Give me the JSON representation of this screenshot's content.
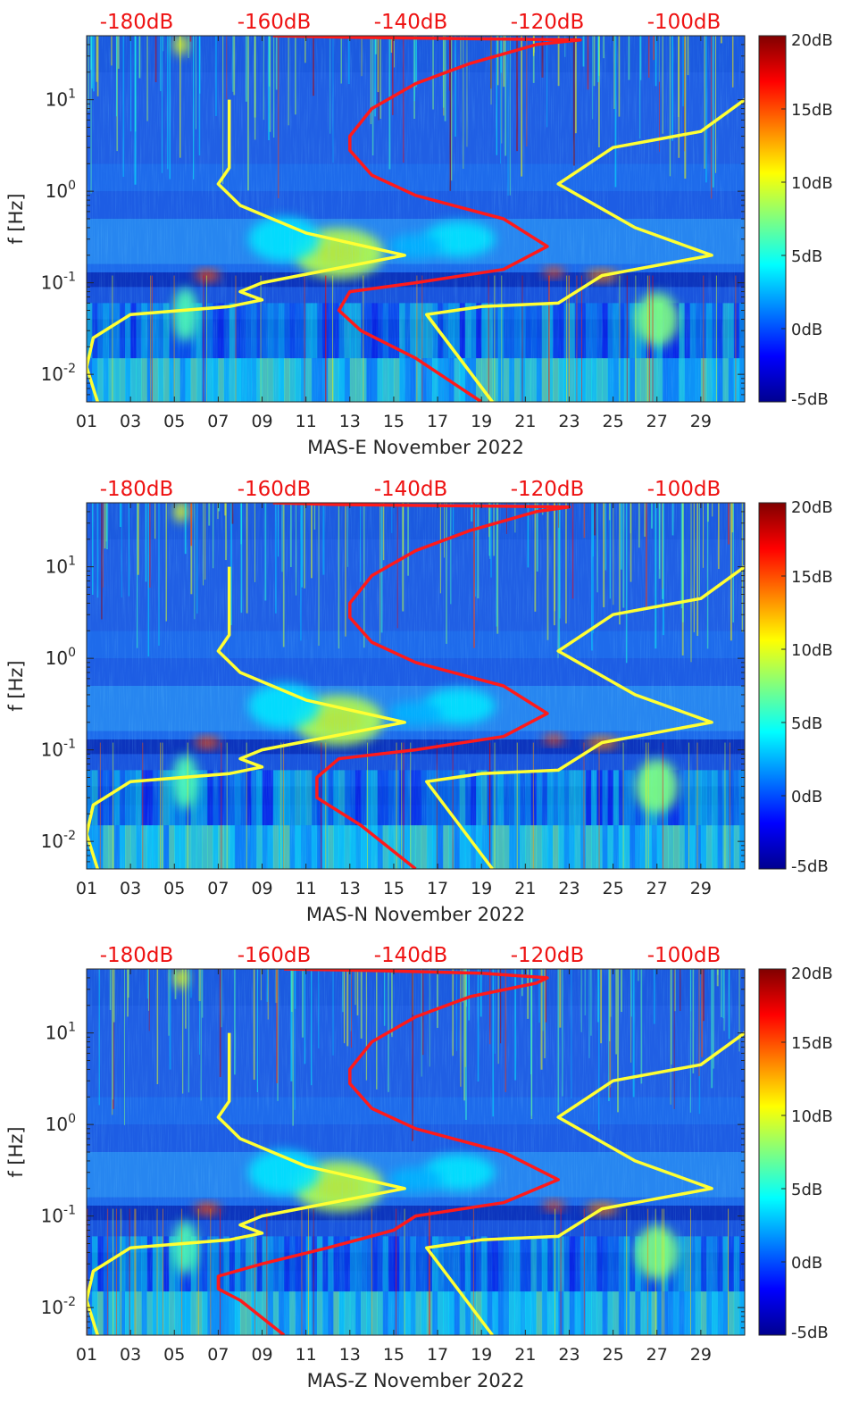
{
  "chart_data": [
    {
      "type": "heatmap",
      "xlabel": "MAS-E November 2022",
      "ylabel": "f [Hz]",
      "x_tick_labels": [
        "01",
        "03",
        "05",
        "07",
        "09",
        "11",
        "13",
        "15",
        "17",
        "19",
        "21",
        "23",
        "25",
        "27",
        "29"
      ],
      "y_tick_labels": [
        "10^-2",
        "10^-1",
        "10^0",
        "10^1"
      ],
      "ylim_hz": [
        0.005,
        50
      ],
      "yscale": "log",
      "top_axis_labels": [
        "-180dB",
        "-160dB",
        "-140dB",
        "-120dB",
        "-100dB"
      ],
      "colorbar": {
        "ticks": [
          "-5dB",
          "0dB",
          "5dB",
          "10dB",
          "15dB",
          "20dB"
        ],
        "range": [
          -5,
          20
        ],
        "colormap": "jet"
      },
      "series": [
        {
          "color": "#ffff33",
          "values_day_vs_hz": [
            [
              1.5,
              0.005
            ],
            [
              1.0,
              0.012
            ],
            [
              1.3,
              0.025
            ],
            [
              3,
              0.045
            ],
            [
              7.5,
              0.055
            ],
            [
              9.0,
              0.065
            ],
            [
              8.0,
              0.08
            ],
            [
              9.0,
              0.1
            ],
            [
              15.5,
              0.2
            ],
            [
              11,
              0.35
            ],
            [
              8,
              0.7
            ],
            [
              7,
              1.2
            ],
            [
              7.5,
              1.8
            ],
            [
              7.5,
              10
            ]
          ]
        },
        {
          "color": "#ffff33",
          "values_day_vs_hz": [
            [
              19.5,
              0.005
            ],
            [
              16.5,
              0.045
            ],
            [
              19,
              0.055
            ],
            [
              22.5,
              0.06
            ],
            [
              24.5,
              0.12
            ],
            [
              29.5,
              0.2
            ],
            [
              26,
              0.4
            ],
            [
              22.5,
              1.2
            ],
            [
              25,
              3
            ],
            [
              29,
              4.5
            ],
            [
              31,
              10
            ]
          ]
        },
        {
          "color": "#ff1a1a",
          "values_day_vs_hz": [
            [
              19,
              0.005
            ],
            [
              16,
              0.015
            ],
            [
              13.5,
              0.03
            ],
            [
              12.5,
              0.05
            ],
            [
              13,
              0.08
            ],
            [
              16,
              0.1
            ],
            [
              20,
              0.14
            ],
            [
              22,
              0.25
            ],
            [
              20,
              0.5
            ],
            [
              16,
              0.9
            ],
            [
              14,
              1.5
            ],
            [
              13,
              2.8
            ],
            [
              13,
              4
            ],
            [
              14,
              8
            ],
            [
              16,
              15
            ],
            [
              18.5,
              25
            ],
            [
              21.5,
              40
            ],
            [
              23.5,
              45
            ],
            [
              13,
              48
            ],
            [
              9.5,
              50
            ]
          ]
        },
        {
          "color": "#ffff33",
          "values_day_vs_hz": [
            [
              19.5,
              0.005
            ],
            [
              16.5,
              0.045
            ]
          ]
        }
      ]
    },
    {
      "type": "heatmap",
      "xlabel": "MAS-N November 2022",
      "ylabel": "f [Hz]",
      "x_tick_labels": [
        "01",
        "03",
        "05",
        "07",
        "09",
        "11",
        "13",
        "15",
        "17",
        "19",
        "21",
        "23",
        "25",
        "27",
        "29"
      ],
      "y_tick_labels": [
        "10^-2",
        "10^-1",
        "10^0",
        "10^1"
      ],
      "ylim_hz": [
        0.005,
        50
      ],
      "yscale": "log",
      "top_axis_labels": [
        "-180dB",
        "-160dB",
        "-140dB",
        "-120dB",
        "-100dB"
      ],
      "colorbar": {
        "ticks": [
          "-5dB",
          "0dB",
          "5dB",
          "10dB",
          "15dB",
          "20dB"
        ],
        "range": [
          -5,
          20
        ],
        "colormap": "jet"
      },
      "series": [
        {
          "color": "#ffff33",
          "values_day_vs_hz": [
            [
              1.5,
              0.005
            ],
            [
              1.0,
              0.012
            ],
            [
              1.3,
              0.025
            ],
            [
              3,
              0.045
            ],
            [
              7.5,
              0.055
            ],
            [
              9.0,
              0.065
            ],
            [
              8.0,
              0.08
            ],
            [
              9.0,
              0.1
            ],
            [
              15.5,
              0.2
            ],
            [
              11,
              0.35
            ],
            [
              8,
              0.7
            ],
            [
              7,
              1.2
            ],
            [
              7.5,
              1.8
            ],
            [
              7.5,
              10
            ]
          ]
        },
        {
          "color": "#ffff33",
          "values_day_vs_hz": [
            [
              19.5,
              0.005
            ],
            [
              16.5,
              0.045
            ],
            [
              19,
              0.055
            ],
            [
              22.5,
              0.06
            ],
            [
              24.5,
              0.12
            ],
            [
              29.5,
              0.2
            ],
            [
              26,
              0.4
            ],
            [
              22.5,
              1.2
            ],
            [
              25,
              3
            ],
            [
              29,
              4.5
            ],
            [
              31,
              10
            ]
          ]
        },
        {
          "color": "#ff1a1a",
          "values_day_vs_hz": [
            [
              16,
              0.005
            ],
            [
              13.5,
              0.015
            ],
            [
              11.5,
              0.03
            ],
            [
              11.5,
              0.05
            ],
            [
              12.5,
              0.08
            ],
            [
              16,
              0.1
            ],
            [
              20,
              0.14
            ],
            [
              22,
              0.25
            ],
            [
              20,
              0.5
            ],
            [
              16,
              0.9
            ],
            [
              14,
              1.5
            ],
            [
              13,
              2.8
            ],
            [
              13,
              4
            ],
            [
              14,
              8
            ],
            [
              16,
              15
            ],
            [
              18.5,
              25
            ],
            [
              21.5,
              40
            ],
            [
              23,
              45
            ],
            [
              12,
              48
            ],
            [
              9.5,
              50
            ]
          ]
        }
      ]
    },
    {
      "type": "heatmap",
      "xlabel": "MAS-Z November 2022",
      "ylabel": "f [Hz]",
      "x_tick_labels": [
        "01",
        "03",
        "05",
        "07",
        "09",
        "11",
        "13",
        "15",
        "17",
        "19",
        "21",
        "23",
        "25",
        "27",
        "29"
      ],
      "y_tick_labels": [
        "10^-2",
        "10^-1",
        "10^0",
        "10^1"
      ],
      "ylim_hz": [
        0.005,
        50
      ],
      "yscale": "log",
      "top_axis_labels": [
        "-180dB",
        "-160dB",
        "-140dB",
        "-120dB",
        "-100dB"
      ],
      "colorbar": {
        "ticks": [
          "-5dB",
          "0dB",
          "5dB",
          "10dB",
          "15dB",
          "20dB"
        ],
        "range": [
          -5,
          20
        ],
        "colormap": "jet"
      },
      "series": [
        {
          "color": "#ffff33",
          "values_day_vs_hz": [
            [
              1.5,
              0.005
            ],
            [
              1.0,
              0.012
            ],
            [
              1.3,
              0.025
            ],
            [
              3,
              0.045
            ],
            [
              7.5,
              0.055
            ],
            [
              9.0,
              0.065
            ],
            [
              8.0,
              0.08
            ],
            [
              9.0,
              0.1
            ],
            [
              15.5,
              0.2
            ],
            [
              11,
              0.35
            ],
            [
              8,
              0.7
            ],
            [
              7,
              1.2
            ],
            [
              7.5,
              1.8
            ],
            [
              7.5,
              10
            ]
          ]
        },
        {
          "color": "#ffff33",
          "values_day_vs_hz": [
            [
              19.5,
              0.005
            ],
            [
              16.5,
              0.045
            ],
            [
              19,
              0.055
            ],
            [
              22.5,
              0.06
            ],
            [
              24.5,
              0.12
            ],
            [
              29.5,
              0.2
            ],
            [
              26,
              0.4
            ],
            [
              22.5,
              1.2
            ],
            [
              25,
              3
            ],
            [
              29,
              4.5
            ],
            [
              31,
              10
            ]
          ]
        },
        {
          "color": "#ff1a1a",
          "values_day_vs_hz": [
            [
              10,
              0.005
            ],
            [
              8,
              0.012
            ],
            [
              7,
              0.016
            ],
            [
              7,
              0.022
            ],
            [
              9,
              0.03
            ],
            [
              12,
              0.045
            ],
            [
              15,
              0.07
            ],
            [
              16,
              0.1
            ],
            [
              20,
              0.14
            ],
            [
              22.5,
              0.25
            ],
            [
              20,
              0.5
            ],
            [
              16,
              0.9
            ],
            [
              14,
              1.5
            ],
            [
              13,
              2.8
            ],
            [
              13,
              4
            ],
            [
              14,
              8
            ],
            [
              16,
              15
            ],
            [
              18.5,
              25
            ],
            [
              21.5,
              35
            ],
            [
              22,
              40
            ],
            [
              19,
              45
            ],
            [
              14,
              48
            ],
            [
              10,
              50
            ]
          ]
        }
      ]
    }
  ]
}
